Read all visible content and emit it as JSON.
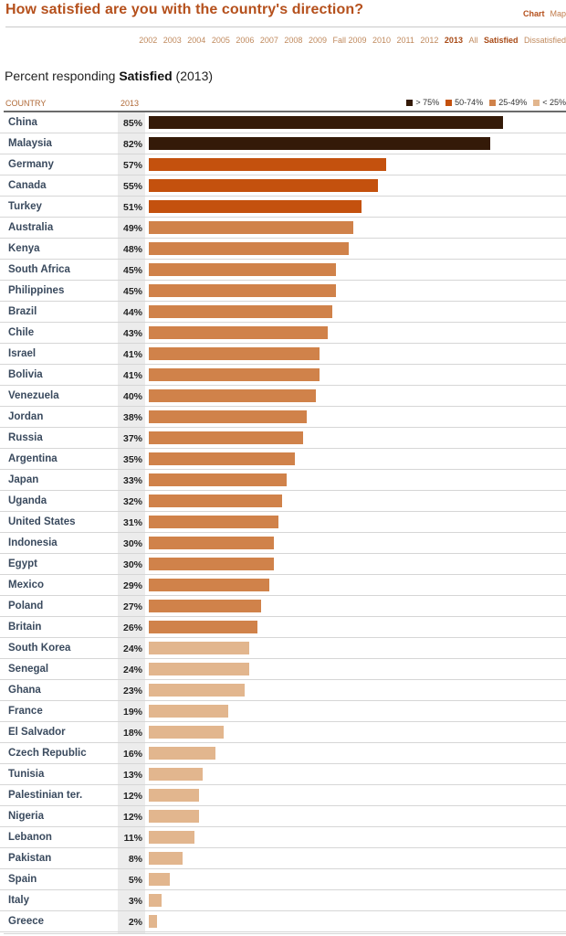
{
  "header": {
    "title": "How satisfied are you with the country's direction?",
    "view_links": [
      {
        "label": "Chart",
        "active": true
      },
      {
        "label": "Map",
        "active": false
      }
    ],
    "year_nav": [
      {
        "label": "2002",
        "active": false
      },
      {
        "label": "2003",
        "active": false
      },
      {
        "label": "2004",
        "active": false
      },
      {
        "label": "2005",
        "active": false
      },
      {
        "label": "2006",
        "active": false
      },
      {
        "label": "2007",
        "active": false
      },
      {
        "label": "2008",
        "active": false
      },
      {
        "label": "2009",
        "active": false
      },
      {
        "label": "Fall 2009",
        "active": false
      },
      {
        "label": "2010",
        "active": false
      },
      {
        "label": "2011",
        "active": false
      },
      {
        "label": "2012",
        "active": false
      },
      {
        "label": "2013",
        "active": true
      },
      {
        "label": "All",
        "active": false
      },
      {
        "label": "Satisfied",
        "active": true
      },
      {
        "label": "Dissatisfied",
        "active": false
      }
    ]
  },
  "subtitle": {
    "prefix": "Percent responding ",
    "emphasis": "Satisfied",
    "suffix": " (2013)"
  },
  "colors": {
    "over_75": "#341a08",
    "50_74": "#c4510e",
    "25_49": "#d0824a",
    "under_25": "#e2b68e"
  },
  "chart_data": {
    "type": "bar",
    "orientation": "horizontal",
    "title": "How satisfied are you with the country's direction?",
    "subtitle": "Percent responding Satisfied (2013)",
    "column_headers": {
      "country": "COUNTRY",
      "year": "2013"
    },
    "unit": "%",
    "xlim": [
      0,
      100
    ],
    "legend": {
      "placement": "top-right",
      "entries": [
        {
          "label": "> 75%",
          "min": 75,
          "color_key": "over_75"
        },
        {
          "label": "50-74%",
          "min": 50,
          "color_key": "50_74"
        },
        {
          "label": "25-49%",
          "min": 25,
          "color_key": "25_49"
        },
        {
          "label": "< 25%",
          "min": 0,
          "color_key": "under_25"
        }
      ]
    },
    "categories": [
      "China",
      "Malaysia",
      "Germany",
      "Canada",
      "Turkey",
      "Australia",
      "Kenya",
      "South Africa",
      "Philippines",
      "Brazil",
      "Chile",
      "Israel",
      "Bolivia",
      "Venezuela",
      "Jordan",
      "Russia",
      "Argentina",
      "Japan",
      "Uganda",
      "United States",
      "Indonesia",
      "Egypt",
      "Mexico",
      "Poland",
      "Britain",
      "South Korea",
      "Senegal",
      "Ghana",
      "France",
      "El Salvador",
      "Czech Republic",
      "Tunisia",
      "Palestinian ter.",
      "Nigeria",
      "Lebanon",
      "Pakistan",
      "Spain",
      "Italy",
      "Greece"
    ],
    "values": [
      85,
      82,
      57,
      55,
      51,
      49,
      48,
      45,
      45,
      44,
      43,
      41,
      41,
      40,
      38,
      37,
      35,
      33,
      32,
      31,
      30,
      30,
      29,
      27,
      26,
      24,
      24,
      23,
      19,
      18,
      16,
      13,
      12,
      12,
      11,
      8,
      5,
      3,
      2
    ]
  }
}
